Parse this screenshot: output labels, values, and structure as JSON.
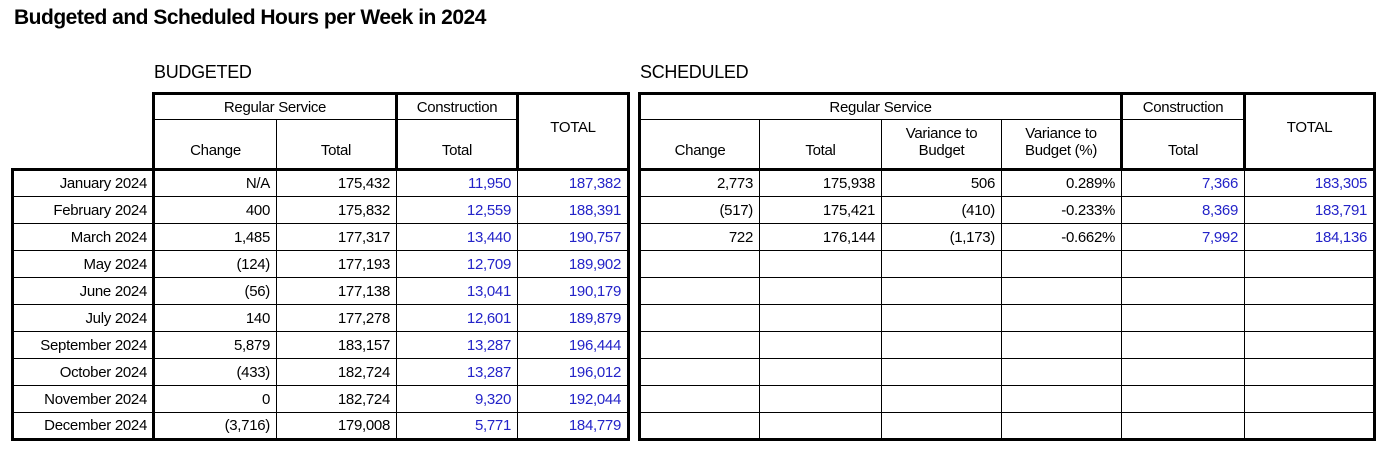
{
  "title": "Budgeted and Scheduled Hours per Week in 2024",
  "colors": {
    "value_blue": "#2323c8",
    "text_black": "#000000",
    "background": "#ffffff"
  },
  "budgeted": {
    "section_label": "BUDGETED",
    "header": {
      "regular_service": "Regular Service",
      "construction": "Construction",
      "change": "Change",
      "total": "Total",
      "construction_total": "Total",
      "grand_total": "TOTAL"
    }
  },
  "scheduled": {
    "section_label": "SCHEDULED",
    "header": {
      "regular_service": "Regular Service",
      "construction": "Construction",
      "change": "Change",
      "total": "Total",
      "variance_to_budget": "Variance to Budget",
      "variance_to_budget_pct": "Variance to Budget (%)",
      "construction_total": "Total",
      "grand_total": "TOTAL"
    }
  },
  "rows": [
    {
      "month": "January 2024",
      "b_change": "N/A",
      "b_total": "175,432",
      "b_constr": "11,950",
      "b_grand": "187,382",
      "s_change": "2,773",
      "s_total": "175,938",
      "s_var": "506",
      "s_var_pct": "0.289%",
      "s_constr": "7,366",
      "s_grand": "183,305"
    },
    {
      "month": "February 2024",
      "b_change": "400",
      "b_total": "175,832",
      "b_constr": "12,559",
      "b_grand": "188,391",
      "s_change": "(517)",
      "s_total": "175,421",
      "s_var": "(410)",
      "s_var_pct": "-0.233%",
      "s_constr": "8,369",
      "s_grand": "183,791"
    },
    {
      "month": "March  2024",
      "b_change": "1,485",
      "b_total": "177,317",
      "b_constr": "13,440",
      "b_grand": "190,757",
      "s_change": "722",
      "s_total": "176,144",
      "s_var": "(1,173)",
      "s_var_pct": "-0.662%",
      "s_constr": "7,992",
      "s_grand": "184,136"
    },
    {
      "month": "May 2024",
      "b_change": "(124)",
      "b_total": "177,193",
      "b_constr": "12,709",
      "b_grand": "189,902"
    },
    {
      "month": "June 2024",
      "b_change": "(56)",
      "b_total": "177,138",
      "b_constr": "13,041",
      "b_grand": "190,179"
    },
    {
      "month": "July 2024",
      "b_change": "140",
      "b_total": "177,278",
      "b_constr": "12,601",
      "b_grand": "189,879"
    },
    {
      "month": "September 2024",
      "b_change": "5,879",
      "b_total": "183,157",
      "b_constr": "13,287",
      "b_grand": "196,444"
    },
    {
      "month": "October 2024",
      "b_change": "(433)",
      "b_total": "182,724",
      "b_constr": "13,287",
      "b_grand": "196,012"
    },
    {
      "month": "November 2024",
      "b_change": "0",
      "b_total": "182,724",
      "b_constr": "9,320",
      "b_grand": "192,044"
    },
    {
      "month": "December 2024",
      "b_change": "(3,716)",
      "b_total": "179,008",
      "b_constr": "5,771",
      "b_grand": "184,779"
    }
  ]
}
